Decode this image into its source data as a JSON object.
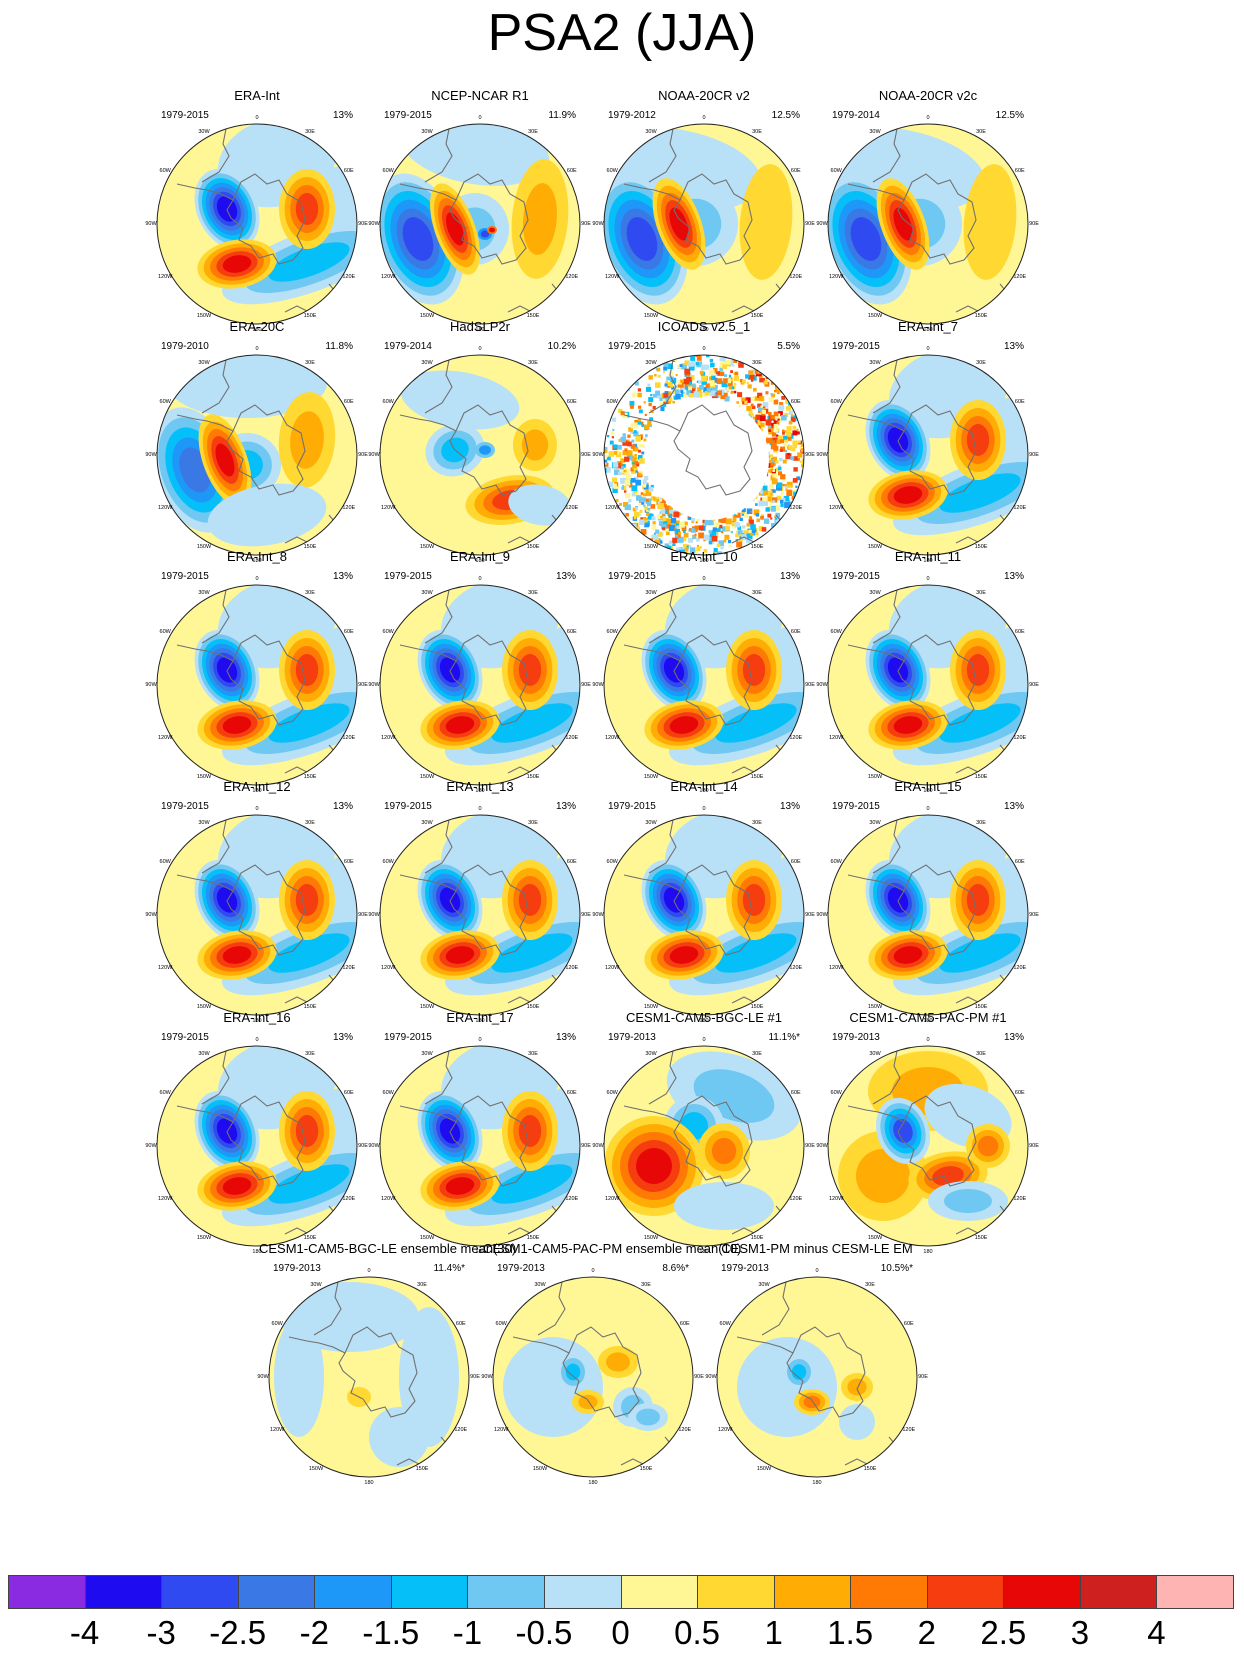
{
  "title": "PSA2 (JJA)",
  "longitude_labels": [
    "0",
    "30E",
    "60E",
    "90E",
    "120E",
    "150E",
    "180",
    "150W",
    "120W",
    "90W",
    "60W",
    "30W"
  ],
  "palette": [
    "#8a2be2",
    "#1e0bf0",
    "#2e4af0",
    "#3a78e6",
    "#1e98f8",
    "#05c0f8",
    "#6ec8f2",
    "#b8e0f6",
    "#fff696",
    "#ffd932",
    "#ffad05",
    "#ff7a05",
    "#f53d0f",
    "#e80707",
    "#cf2020",
    "#ffb4b4"
  ],
  "colorbar_labels": [
    "-4",
    "-3",
    "-2.5",
    "-2",
    "-1.5",
    "-1",
    "-0.5",
    "0",
    "0.5",
    "1",
    "1.5",
    "2",
    "2.5",
    "3",
    "4"
  ],
  "panels": [
    {
      "title": "ERA-Int",
      "period": "1979-2015",
      "percent": "13%",
      "pattern": "era"
    },
    {
      "title": "NCEP-NCAR R1",
      "period": "1979-2015",
      "percent": "11.9%",
      "pattern": "ncep"
    },
    {
      "title": "NOAA-20CR v2",
      "period": "1979-2012",
      "percent": "12.5%",
      "pattern": "noaa"
    },
    {
      "title": "NOAA-20CR v2c",
      "period": "1979-2014",
      "percent": "12.5%",
      "pattern": "noaa"
    },
    {
      "title": "ERA-20C",
      "period": "1979-2010",
      "percent": "11.8%",
      "pattern": "era20c"
    },
    {
      "title": "HadSLP2r",
      "period": "1979-2014",
      "percent": "10.2%",
      "pattern": "hadslp"
    },
    {
      "title": "ICOADS v2.5_1",
      "period": "1979-2015",
      "percent": "5.5%",
      "pattern": "icoads"
    },
    {
      "title": "ERA-Int_7",
      "period": "1979-2015",
      "percent": "13%",
      "pattern": "era"
    },
    {
      "title": "ERA-Int_8",
      "period": "1979-2015",
      "percent": "13%",
      "pattern": "era"
    },
    {
      "title": "ERA-Int_9",
      "period": "1979-2015",
      "percent": "13%",
      "pattern": "era"
    },
    {
      "title": "ERA-Int_10",
      "period": "1979-2015",
      "percent": "13%",
      "pattern": "era"
    },
    {
      "title": "ERA-Int_11",
      "period": "1979-2015",
      "percent": "13%",
      "pattern": "era"
    },
    {
      "title": "ERA-Int_12",
      "period": "1979-2015",
      "percent": "13%",
      "pattern": "era"
    },
    {
      "title": "ERA-Int_13",
      "period": "1979-2015",
      "percent": "13%",
      "pattern": "era"
    },
    {
      "title": "ERA-Int_14",
      "period": "1979-2015",
      "percent": "13%",
      "pattern": "era"
    },
    {
      "title": "ERA-Int_15",
      "period": "1979-2015",
      "percent": "13%",
      "pattern": "era"
    },
    {
      "title": "ERA-Int_16",
      "period": "1979-2015",
      "percent": "13%",
      "pattern": "era"
    },
    {
      "title": "ERA-Int_17",
      "period": "1979-2015",
      "percent": "13%",
      "pattern": "era"
    },
    {
      "title": "CESM1-CAM5-BGC-LE #1",
      "period": "1979-2013",
      "percent": "11.1%*",
      "pattern": "bgc1"
    },
    {
      "title": "CESM1-CAM5-PAC-PM #1",
      "period": "1979-2013",
      "percent": "13%",
      "pattern": "pac1"
    },
    {
      "title": "CESM1-CAM5-BGC-LE ensemble mean(30)",
      "period": "1979-2013",
      "percent": "11.4%*",
      "pattern": "lemean"
    },
    {
      "title": "CESM1-CAM5-PAC-PM ensemble mean(10)",
      "period": "1979-2013",
      "percent": "8.6%*",
      "pattern": "pmmean"
    },
    {
      "title": "CESM1-PM minus CESM-LE EM",
      "period": "1979-2013",
      "percent": "10.5%*",
      "pattern": "diff"
    }
  ]
}
